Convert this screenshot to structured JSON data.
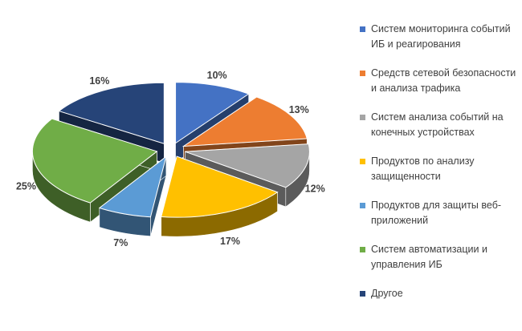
{
  "chart_data": {
    "type": "pie",
    "style": "3d-exploded",
    "title": "",
    "categories": [
      "Систем мониторинга событий ИБ и реагирования",
      "Средств сетевой безопасности и анализа трафика",
      "Систем анализа событий на конечных устройствах",
      "Продуктов по анализу защищенности",
      "Продуктов для защиты веб-приложений",
      "Систем автоматизации и управления ИБ",
      "Другое"
    ],
    "values": [
      10,
      13,
      12,
      17,
      7,
      25,
      16
    ],
    "data_labels": [
      "10%",
      "13%",
      "12%",
      "17%",
      "7%",
      "25%",
      "16%"
    ],
    "colors": [
      "#4472C4",
      "#ED7D31",
      "#A5A5A5",
      "#FFC000",
      "#5B9BD5",
      "#70AD47",
      "#264478"
    ],
    "start_angle_deg": 0,
    "direction": "clockwise",
    "legend_position": "right",
    "background": "#FFFFFF",
    "data_label_color": "#3f3f3f",
    "legend_text_color": "#3f3f3f"
  },
  "legend": {
    "items": [
      {
        "label": "Систем мониторинга событий ИБ и реагирования"
      },
      {
        "label": "Средств сетевой безопасности и анализа трафика"
      },
      {
        "label": "Систем анализа событий на конечных устройствах"
      },
      {
        "label": "Продуктов по анализу защищенности"
      },
      {
        "label": "Продуктов для защиты веб-приложений"
      },
      {
        "label": "Систем автоматизации и управления ИБ"
      },
      {
        "label": "Другое"
      }
    ]
  }
}
